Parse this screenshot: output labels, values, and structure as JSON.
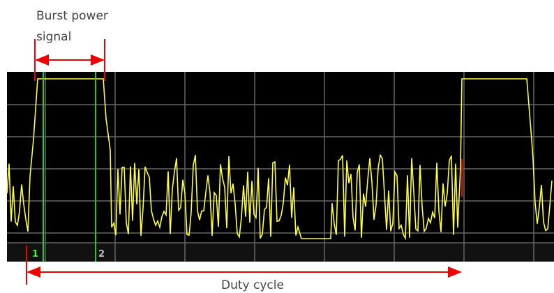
{
  "annotations": {
    "burst_line1": "Burst power",
    "burst_line2": "signal",
    "duty_cycle": "Duty cycle"
  },
  "markers": [
    "1",
    "2"
  ]
}
